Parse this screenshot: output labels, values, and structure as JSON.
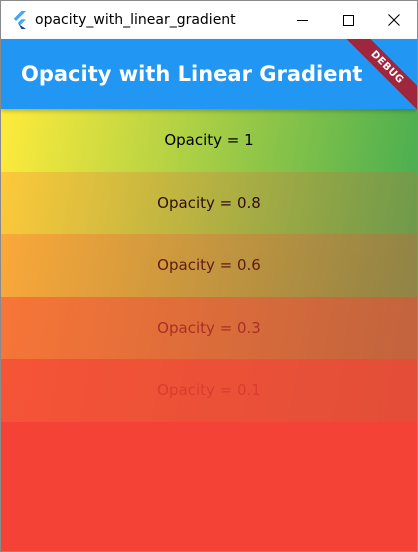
{
  "window": {
    "title": "opacity_with_linear_gradient",
    "controls": {
      "minimize_icon": "minimize-icon",
      "maximize_icon": "maximize-icon",
      "close_icon": "close-icon"
    }
  },
  "appbar": {
    "title": "Opacity with Linear Gradient",
    "color": "#2196f3",
    "debug_banner": "DEBUG"
  },
  "body": {
    "background_color": "#f44336",
    "gradient_colors": [
      "#ffeb3b",
      "#4caf50"
    ],
    "rows": [
      {
        "label": "Opacity = 1",
        "opacity": 1
      },
      {
        "label": "Opacity = 0.8",
        "opacity": 0.8
      },
      {
        "label": "Opacity = 0.6",
        "opacity": 0.6
      },
      {
        "label": "Opacity = 0.3",
        "opacity": 0.3
      },
      {
        "label": "Opacity = 0.1",
        "opacity": 0.1
      }
    ]
  }
}
